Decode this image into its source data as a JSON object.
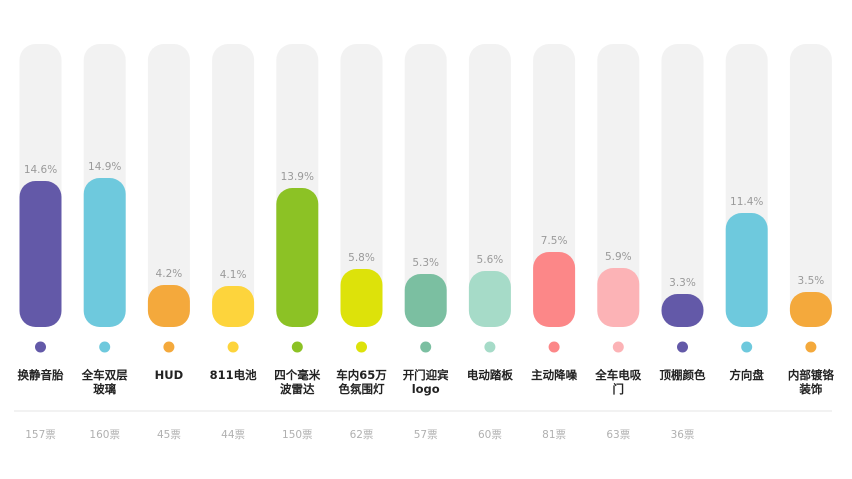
{
  "chart_data": {
    "type": "bar",
    "title": "",
    "xlabel": "",
    "ylabel": "",
    "ylim": [
      0,
      20
    ],
    "grid": false,
    "legend": "none",
    "categories": [
      [
        "换静音胎"
      ],
      [
        "全车双层",
        "玻璃"
      ],
      [
        "HUD"
      ],
      [
        "811电池"
      ],
      [
        "四个毫米",
        "波雷达"
      ],
      [
        "车内65万",
        "色氛围灯"
      ],
      [
        "开门迎宾",
        "logo"
      ],
      [
        "电动踏板"
      ],
      [
        "主动降噪"
      ],
      [
        "全车电吸",
        "门"
      ],
      [
        "顶棚颜色"
      ],
      [
        "方向盘"
      ],
      [
        "内部镀铬",
        "装饰"
      ]
    ],
    "values": [
      14.6,
      14.9,
      4.2,
      4.1,
      13.9,
      5.8,
      5.3,
      5.6,
      7.5,
      5.9,
      3.3,
      11.4,
      3.5
    ],
    "value_labels": [
      "14.6%",
      "14.9%",
      "4.2%",
      "4.1%",
      "13.9%",
      "5.8%",
      "5.3%",
      "5.6%",
      "7.5%",
      "5.9%",
      "3.3%",
      "11.4%",
      "3.5%"
    ],
    "votes": [
      "157票",
      "160票",
      "45票",
      "44票",
      "150票",
      "62票",
      "57票",
      "60票",
      "81票",
      "63票",
      "36票",
      "",
      ""
    ],
    "colors": [
      "#6359a8",
      "#6ec9dd",
      "#f4a93c",
      "#fdd43c",
      "#8cc225",
      "#dde20a",
      "#7bbfa1",
      "#a6dbc8",
      "#fc8788",
      "#fcb3b6",
      "#6359a8",
      "#6ec9dd",
      "#f4a93c"
    ],
    "track_color": "#f2f2f2",
    "divider_color": "#e6e6e6"
  }
}
